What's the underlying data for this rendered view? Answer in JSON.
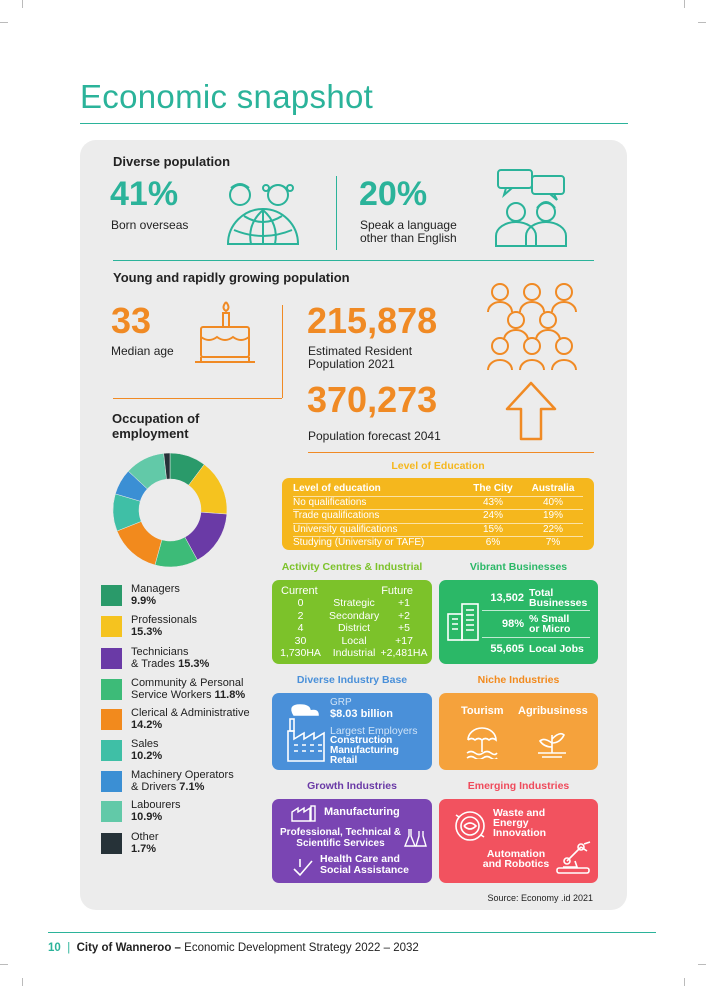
{
  "page": {
    "title": "Economic snapshot",
    "source": "Source: Economy .id 2021",
    "footer": {
      "page_number": "10",
      "org": "City of Wanneroo –",
      "doc_title": "Economic Development Strategy 2022 – 2032"
    }
  },
  "diversity": {
    "heading": "Diverse population",
    "born_overseas": {
      "value": "41%",
      "label": "Born overseas"
    },
    "language": {
      "value": "20%",
      "label": "Speak a language other than English"
    }
  },
  "growth": {
    "heading": "Young and rapidly growing population",
    "median_age": {
      "value": "33",
      "label": "Median age"
    },
    "population_2021": {
      "value": "215,878",
      "label": "Estimated Resident Population 2021"
    },
    "forecast_2041": {
      "value": "370,273",
      "label": "Population forecast 2041"
    }
  },
  "occupation": {
    "heading": "Occupation of employment",
    "chart_data": {
      "type": "pie",
      "title": "Occupation of employment",
      "categories": [
        "Managers",
        "Professionals",
        "Technicians & Trades",
        "Community & Personal Service Workers",
        "Clerical & Administrative",
        "Sales",
        "Machinery Operators & Drivers",
        "Labourers",
        "Other"
      ],
      "values": [
        9.9,
        15.3,
        15.3,
        11.8,
        14.2,
        10.2,
        7.1,
        10.9,
        1.7
      ],
      "colors": [
        "#2a9a6a",
        "#f5c31f",
        "#6a3aa6",
        "#3dbb78",
        "#f28a1d",
        "#3fbfa6",
        "#3b8fd4",
        "#62c9a8",
        "#263238"
      ]
    },
    "legend": [
      {
        "name": "Managers",
        "value": "9.9%",
        "color": "#2a9a6a"
      },
      {
        "name": "Professionals",
        "value": "15.3%",
        "color": "#f5c31f"
      },
      {
        "name": "Technicians",
        "name2": "& Trades",
        "value": "15.3%",
        "color": "#6a3aa6"
      },
      {
        "name": "Community & Personal",
        "name2": "Service Workers",
        "value": "11.8%",
        "color": "#3dbb78"
      },
      {
        "name": "Clerical & Administrative",
        "value": "14.2%",
        "color": "#f28a1d"
      },
      {
        "name": "Sales",
        "value": "10.2%",
        "color": "#3fbfa6"
      },
      {
        "name": "Machinery Operators",
        "name2": "& Drivers",
        "value": "7.1%",
        "color": "#3b8fd4"
      },
      {
        "name": "Labourers",
        "value": "10.9%",
        "color": "#62c9a8"
      },
      {
        "name": "Other",
        "value": "1.7%",
        "color": "#263238"
      }
    ]
  },
  "education": {
    "heading": "Level of Education",
    "columns": [
      "Level of education",
      "The City",
      "Australia"
    ],
    "rows": [
      [
        "No qualifications",
        "43%",
        "40%"
      ],
      [
        "Trade qualifications",
        "24%",
        "19%"
      ],
      [
        "University qualifications",
        "15%",
        "22%"
      ],
      [
        "Studying (University or TAFE)",
        "6%",
        "7%"
      ]
    ]
  },
  "activity_centres": {
    "heading": "Activity Centres & Industrial",
    "col_current": "Current",
    "col_future": "Future",
    "rows": [
      [
        "0",
        "Strategic",
        "+1"
      ],
      [
        "2",
        "Secondary",
        "+2"
      ],
      [
        "4",
        "District",
        "+5"
      ],
      [
        "30",
        "Local",
        "+17"
      ],
      [
        "1,730HA",
        "Industrial",
        "+2,481HA"
      ]
    ]
  },
  "vibrant_businesses": {
    "heading": "Vibrant Businesses",
    "rows": [
      {
        "value": "13,502",
        "label": "Total",
        "label2": "Businesses"
      },
      {
        "value": "98%",
        "label": "% Small",
        "label2": "or Micro"
      },
      {
        "value": "55,605",
        "label": "Local Jobs",
        "label2": ""
      }
    ]
  },
  "industry_base": {
    "heading": "Diverse Industry Base",
    "grp_label": "GRP",
    "grp_value": "$8.03 billion",
    "employers_label": "Largest Employers",
    "employers": [
      "Construction",
      "Manufacturing",
      "Retail"
    ]
  },
  "niche": {
    "heading": "Niche Industries",
    "items": [
      "Tourism",
      "Agribusiness"
    ]
  },
  "growth_industries": {
    "heading": "Growth Industries",
    "items": [
      "Manufacturing",
      "Professional, Technical &",
      "Scientific Services",
      "Health Care and",
      "Social Assistance"
    ]
  },
  "emerging": {
    "heading": "Emerging Industries",
    "items": [
      "Waste and",
      "Energy",
      "Innovation",
      "Automation",
      "and Robotics"
    ]
  }
}
